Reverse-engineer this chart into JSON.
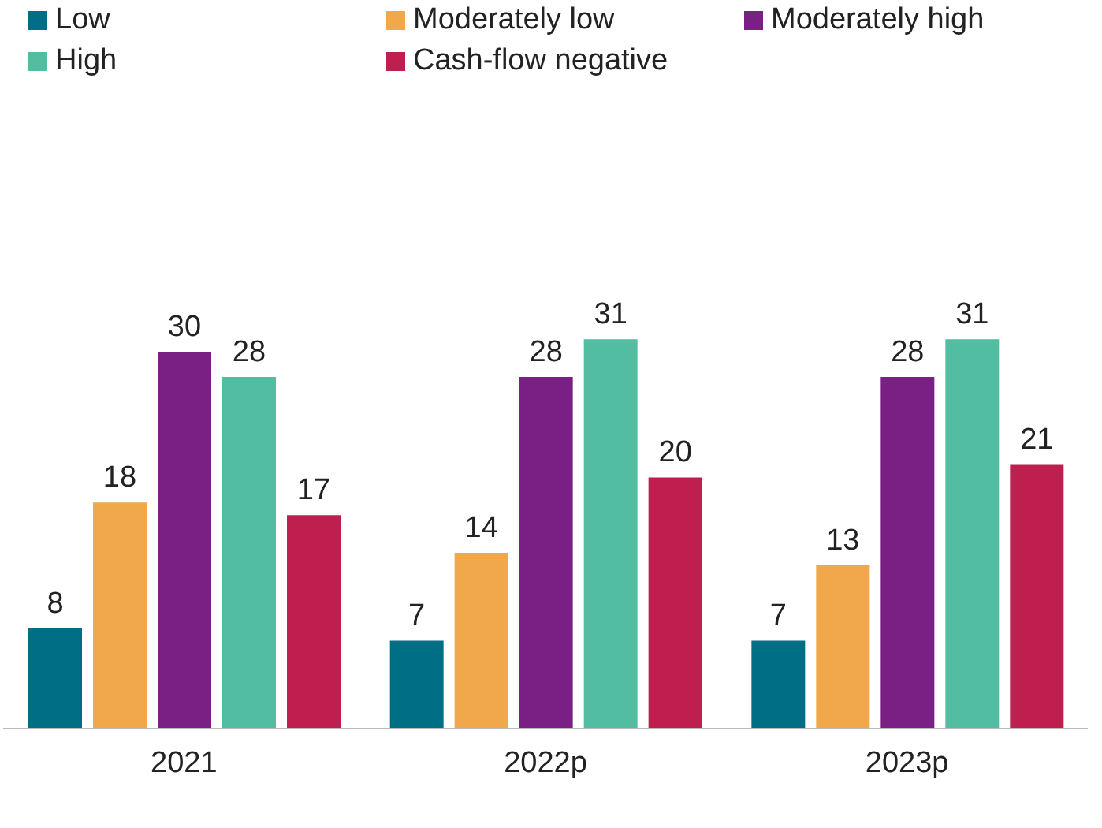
{
  "chart_data": {
    "type": "bar",
    "categories": [
      "2021",
      "2022p",
      "2023p"
    ],
    "series": [
      {
        "name": "Low",
        "color": "#006f86",
        "values": [
          8,
          7,
          7
        ]
      },
      {
        "name": "Moderately low",
        "color": "#f1a84b",
        "values": [
          18,
          14,
          13
        ]
      },
      {
        "name": "Moderately high",
        "color": "#7a1f84",
        "values": [
          30,
          28,
          28
        ]
      },
      {
        "name": "High",
        "color": "#52bda0",
        "values": [
          28,
          31,
          31
        ]
      },
      {
        "name": "Cash-flow negative",
        "color": "#be1f4f",
        "values": [
          17,
          20,
          21
        ]
      }
    ],
    "data_labels": true,
    "legend": "top left",
    "grid": false
  }
}
